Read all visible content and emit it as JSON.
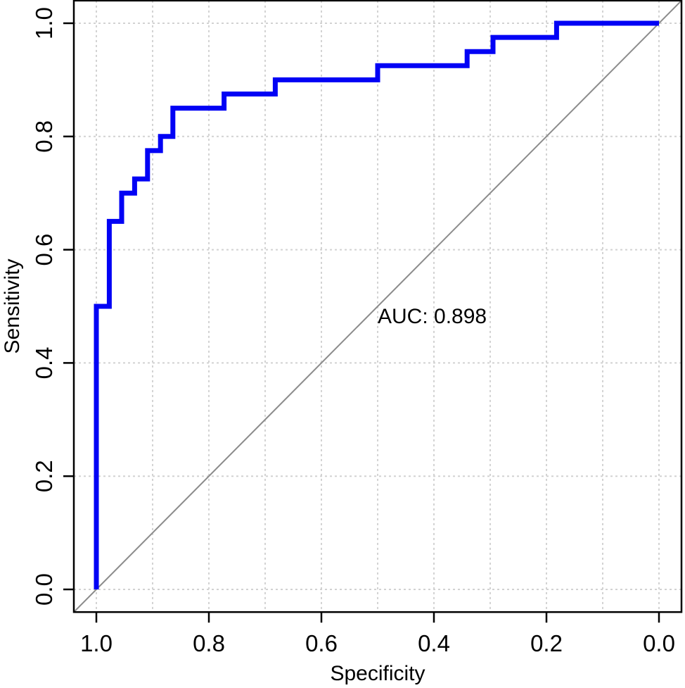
{
  "chart_data": {
    "type": "line",
    "subtype": "roc-curve-step-plot",
    "title": "",
    "xlabel": "Specificity",
    "ylabel": "Sensitivity",
    "x_axis": {
      "label": "Specificity",
      "tick_labels": [
        "1.0",
        "0.8",
        "0.6",
        "0.4",
        "0.2",
        "0.0"
      ],
      "tick_values": [
        1.0,
        0.8,
        0.6,
        0.4,
        0.2,
        0.0
      ],
      "reversed": true,
      "range_shown": [
        1.04,
        -0.04
      ]
    },
    "y_axis": {
      "label": "Sensitivity",
      "tick_labels": [
        "0.0",
        "0.2",
        "0.4",
        "0.6",
        "0.8",
        "1.0"
      ],
      "tick_values": [
        0.0,
        0.2,
        0.4,
        0.6,
        0.8,
        1.0
      ],
      "range_shown": [
        -0.04,
        1.04
      ]
    },
    "grid": {
      "shown": true,
      "vertical_interval": 0.1,
      "horizontal_interval": 0.2,
      "line_style": "dotted",
      "color": "#d2d2d2"
    },
    "reference_diagonal": {
      "present": true,
      "description": "chance line from specificity 1 / sensitivity 0 to specificity 0 / sensitivity 1",
      "color": "#8b8b8b"
    },
    "annotation": {
      "text": "AUC: 0.898",
      "auc_value": 0.898,
      "color": "#0202f5",
      "anchor_specificity": 0.5,
      "anchor_sensitivity": 0.47
    },
    "series": [
      {
        "name": "ROC curve",
        "color": "#0202f5",
        "line_width": 7,
        "points_specificity_sensitivity": [
          [
            1.0,
            0.0
          ],
          [
            1.0,
            0.5
          ],
          [
            0.977,
            0.5
          ],
          [
            0.977,
            0.65
          ],
          [
            0.955,
            0.65
          ],
          [
            0.955,
            0.7
          ],
          [
            0.932,
            0.7
          ],
          [
            0.932,
            0.725
          ],
          [
            0.909,
            0.725
          ],
          [
            0.909,
            0.775
          ],
          [
            0.886,
            0.775
          ],
          [
            0.886,
            0.8
          ],
          [
            0.864,
            0.8
          ],
          [
            0.864,
            0.85
          ],
          [
            0.773,
            0.85
          ],
          [
            0.773,
            0.875
          ],
          [
            0.682,
            0.875
          ],
          [
            0.682,
            0.9
          ],
          [
            0.5,
            0.9
          ],
          [
            0.5,
            0.925
          ],
          [
            0.341,
            0.925
          ],
          [
            0.341,
            0.95
          ],
          [
            0.295,
            0.95
          ],
          [
            0.295,
            0.975
          ],
          [
            0.182,
            0.975
          ],
          [
            0.182,
            1.0
          ],
          [
            0.0,
            1.0
          ]
        ]
      }
    ]
  }
}
